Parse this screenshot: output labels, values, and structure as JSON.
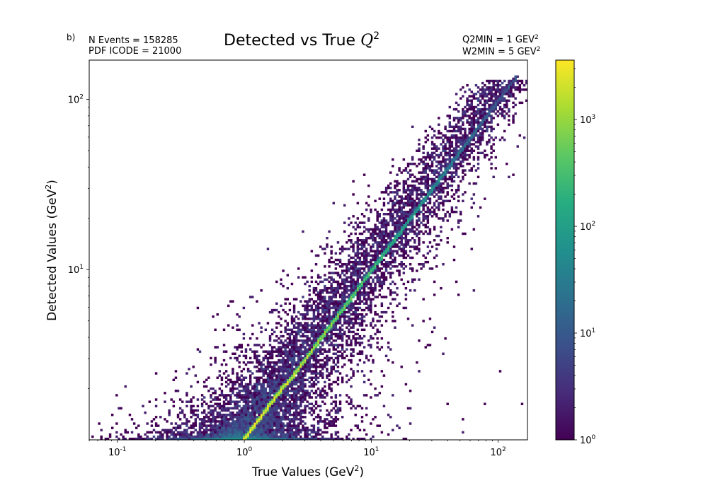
{
  "header": {
    "panel_label": "b)",
    "events_label": "N Events =  158285",
    "pdf_label": "PDF ICODE = 21000",
    "q2min_label": "Q2MIN = 1 GEV",
    "q2min_exp": "2",
    "w2min_label": "W2MIN = 5 GEV",
    "w2min_exp": "2"
  },
  "chart_data": {
    "type": "heatmap",
    "title": "Detected vs True Q^2",
    "title_text": "Detected vs True ",
    "title_var": "Q",
    "title_exp": "2",
    "xlabel": "True Values (GeV^2)",
    "ylabel": "Detected Values (GeV^2)",
    "xscale": "log",
    "yscale": "log",
    "xlim": [
      0.06,
      170
    ],
    "ylim": [
      1.0,
      170
    ],
    "x_ticks": [
      {
        "value": 0.1,
        "label": "10^-1"
      },
      {
        "value": 1,
        "label": "10^0"
      },
      {
        "value": 10,
        "label": "10^1"
      },
      {
        "value": 100,
        "label": "10^2"
      }
    ],
    "y_ticks": [
      {
        "value": 10,
        "label": "10^1"
      },
      {
        "value": 100,
        "label": "10^2"
      }
    ],
    "colorbar": {
      "scale": "log",
      "colormap": "viridis",
      "range": [
        1,
        3600
      ],
      "ticks": [
        {
          "value": 1,
          "label": "10^0"
        },
        {
          "value": 10,
          "label": "10^1"
        },
        {
          "value": 100,
          "label": "10^2"
        },
        {
          "value": 1000,
          "label": "10^3"
        }
      ]
    },
    "total_events": 158285,
    "description_points": [
      {
        "true_q2": 1.0,
        "detected_q2": 1.0
      },
      {
        "true_q2": 3.0,
        "detected_q2": 3.0
      },
      {
        "true_q2": 10.0,
        "detected_q2": 10.0
      },
      {
        "true_q2": 30.0,
        "detected_q2": 30.0
      },
      {
        "true_q2": 140.0,
        "detected_q2": 140.0
      }
    ],
    "density_profile": [
      {
        "q2": 1.2,
        "diagonal_count": 3000
      },
      {
        "q2": 3.0,
        "diagonal_count": 1500
      },
      {
        "q2": 10.0,
        "diagonal_count": 300
      },
      {
        "q2": 30.0,
        "diagonal_count": 60
      },
      {
        "q2": 100.0,
        "diagonal_count": 8
      }
    ]
  }
}
